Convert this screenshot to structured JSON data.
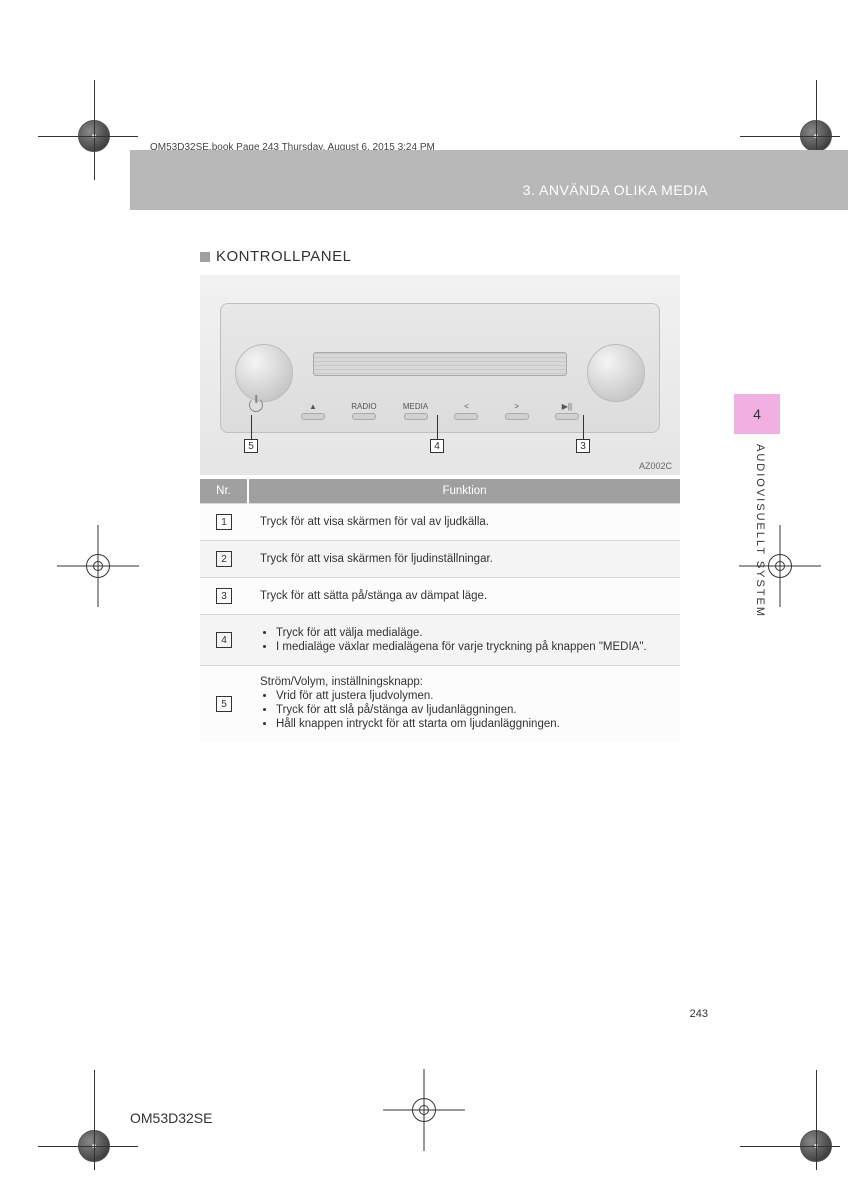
{
  "header_line": "OM53D32SE.book  Page 243  Thursday, August 6, 2015  3:24 PM",
  "chapter": "3. ANVÄNDA OLIKA MEDIA",
  "section_title": "KONTROLLPANEL",
  "panel": {
    "buttons": {
      "eject": "▲",
      "radio": "RADIO",
      "media": "MEDIA",
      "prev": "<",
      "next": ">",
      "playpause": "▶||"
    },
    "callouts": {
      "c5": "5",
      "c4": "4",
      "c3": "3"
    },
    "image_code": "AZ002C"
  },
  "table": {
    "headers": {
      "nr": "Nr.",
      "funktion": "Funktion"
    },
    "rows": [
      {
        "num": "1",
        "lines": [
          "Tryck för att visa skärmen för val av ljudkälla."
        ]
      },
      {
        "num": "2",
        "lines": [
          "Tryck för att visa skärmen för ljudinställningar."
        ]
      },
      {
        "num": "3",
        "lines": [
          "Tryck för att sätta på/stänga av dämpat läge."
        ]
      },
      {
        "num": "4",
        "intro": "",
        "bullets": [
          "Tryck för att välja medialäge.",
          "I medialäge växlar medialägena för varje tryckning på knappen \"MEDIA\"."
        ]
      },
      {
        "num": "5",
        "intro": "Ström/Volym, inställningsknapp:",
        "bullets": [
          "Vrid för att justera ljudvolymen.",
          "Tryck för att slå på/stänga av ljudanläggningen.",
          "Håll knappen intryckt för att starta om ljudanläggningen."
        ]
      }
    ]
  },
  "side": {
    "tab": "4",
    "label": "AUDIOVISUELLT SYSTEM"
  },
  "page_number": "243",
  "doc_code": "OM53D32SE"
}
